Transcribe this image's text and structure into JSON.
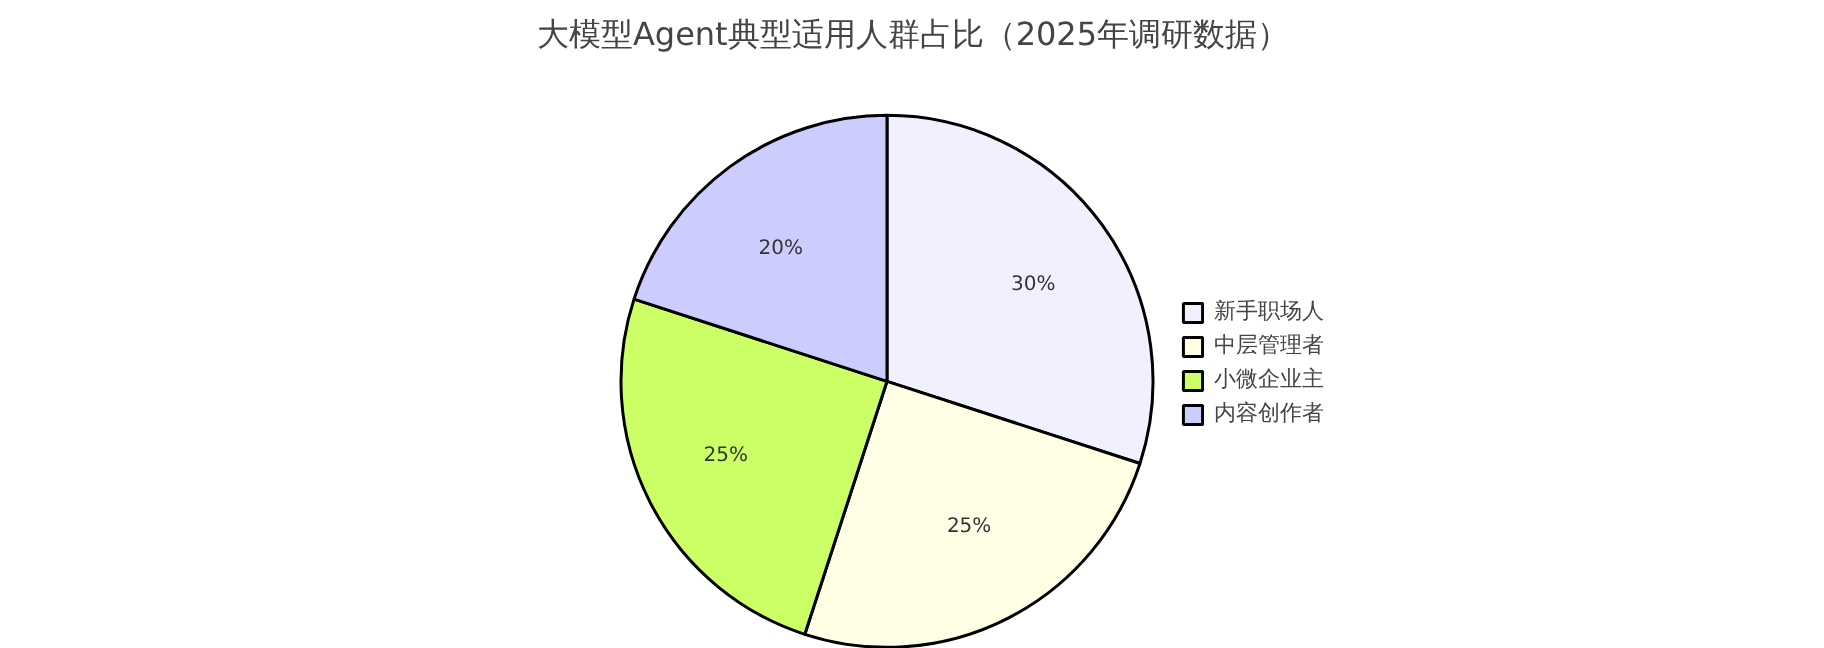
{
  "chart_data": {
    "type": "pie",
    "title": "大模型Agent典型适用人群占比（2025年调研数据）",
    "categories": [
      "新手职场人",
      "中层管理者",
      "小微企业主",
      "内容创作者"
    ],
    "values": [
      30,
      25,
      25,
      20
    ],
    "colors": [
      "#f0f0ff",
      "#ffffe6",
      "#ccff66",
      "#ccccff"
    ],
    "value_labels": [
      "30%",
      "25%",
      "25%",
      "20%"
    ],
    "legend": "right"
  }
}
